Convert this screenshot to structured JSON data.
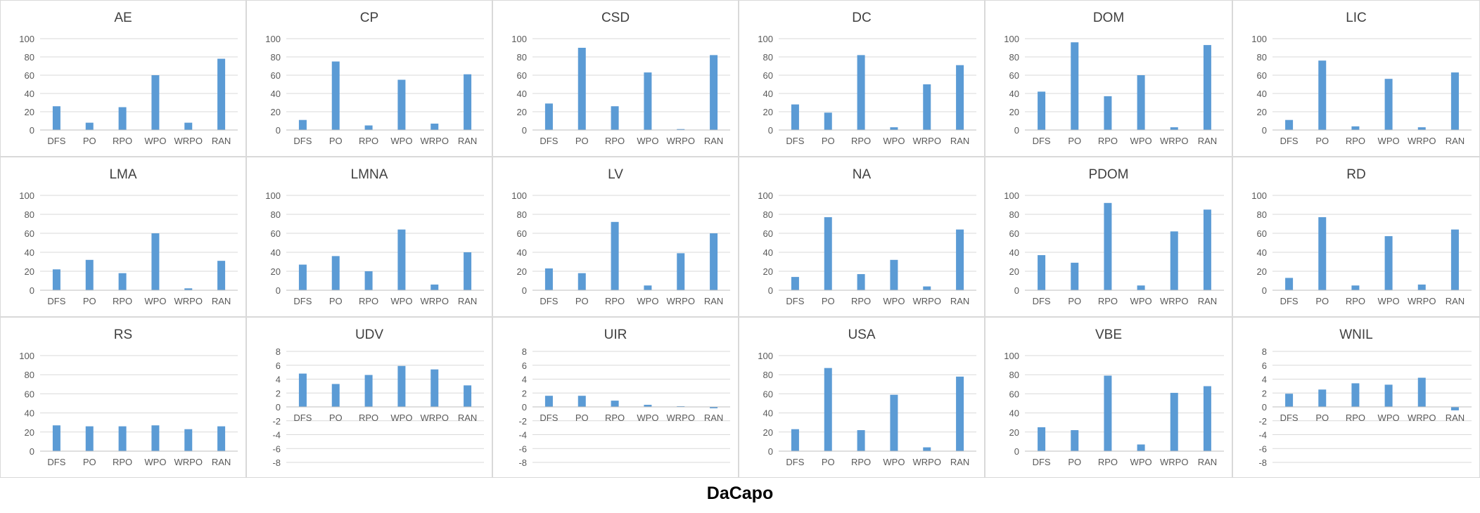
{
  "figure": {
    "caption": "DaCapo"
  },
  "colors": {
    "bar": "#5b9bd5",
    "grid": "#d9d9d9",
    "axis": "#bfbfbf",
    "tick_text": "#595959",
    "title_text": "#404040",
    "border": "#d9d9d9"
  },
  "chart_data": [
    {
      "type": "bar",
      "title": "AE",
      "categories": [
        "DFS",
        "PO",
        "RPO",
        "WPO",
        "WRPO",
        "RAN"
      ],
      "values": [
        26,
        8,
        25,
        60,
        8,
        78
      ],
      "ylim": [
        0,
        100
      ],
      "yticks": [
        0,
        20,
        40,
        60,
        80,
        100
      ],
      "grid": true,
      "legend": "none"
    },
    {
      "type": "bar",
      "title": "CP",
      "categories": [
        "DFS",
        "PO",
        "RPO",
        "WPO",
        "WRPO",
        "RAN"
      ],
      "values": [
        11,
        75,
        5,
        55,
        7,
        61
      ],
      "ylim": [
        0,
        100
      ],
      "yticks": [
        0,
        20,
        40,
        60,
        80,
        100
      ],
      "grid": true,
      "legend": "none"
    },
    {
      "type": "bar",
      "title": "CSD",
      "categories": [
        "DFS",
        "PO",
        "RPO",
        "WPO",
        "WRPO",
        "RAN"
      ],
      "values": [
        29,
        90,
        26,
        63,
        1,
        82
      ],
      "ylim": [
        0,
        100
      ],
      "yticks": [
        0,
        20,
        40,
        60,
        80,
        100
      ],
      "grid": true,
      "legend": "none"
    },
    {
      "type": "bar",
      "title": "DC",
      "categories": [
        "DFS",
        "PO",
        "RPO",
        "WPO",
        "WRPO",
        "RAN"
      ],
      "values": [
        28,
        19,
        82,
        3,
        50,
        71
      ],
      "ylim": [
        0,
        100
      ],
      "yticks": [
        0,
        20,
        40,
        60,
        80,
        100
      ],
      "grid": true,
      "legend": "none"
    },
    {
      "type": "bar",
      "title": "DOM",
      "categories": [
        "DFS",
        "PO",
        "RPO",
        "WPO",
        "WRPO",
        "RAN"
      ],
      "values": [
        42,
        96,
        37,
        60,
        3,
        93
      ],
      "ylim": [
        0,
        100
      ],
      "yticks": [
        0,
        20,
        40,
        60,
        80,
        100
      ],
      "grid": true,
      "legend": "none"
    },
    {
      "type": "bar",
      "title": "LIC",
      "categories": [
        "DFS",
        "PO",
        "RPO",
        "WPO",
        "WRPO",
        "RAN"
      ],
      "values": [
        11,
        76,
        4,
        56,
        3,
        63
      ],
      "ylim": [
        0,
        100
      ],
      "yticks": [
        0,
        20,
        40,
        60,
        80,
        100
      ],
      "grid": true,
      "legend": "none"
    },
    {
      "type": "bar",
      "title": "LMA",
      "categories": [
        "DFS",
        "PO",
        "RPO",
        "WPO",
        "WRPO",
        "RAN"
      ],
      "values": [
        22,
        32,
        18,
        60,
        2,
        31
      ],
      "ylim": [
        0,
        100
      ],
      "yticks": [
        0,
        20,
        40,
        60,
        80,
        100
      ],
      "grid": true,
      "legend": "none"
    },
    {
      "type": "bar",
      "title": "LMNA",
      "categories": [
        "DFS",
        "PO",
        "RPO",
        "WPO",
        "WRPO",
        "RAN"
      ],
      "values": [
        27,
        36,
        20,
        64,
        6,
        40
      ],
      "ylim": [
        0,
        100
      ],
      "yticks": [
        0,
        20,
        40,
        60,
        80,
        100
      ],
      "grid": true,
      "legend": "none"
    },
    {
      "type": "bar",
      "title": "LV",
      "categories": [
        "DFS",
        "PO",
        "RPO",
        "WPO",
        "WRPO",
        "RAN"
      ],
      "values": [
        23,
        18,
        72,
        5,
        39,
        60
      ],
      "ylim": [
        0,
        100
      ],
      "yticks": [
        0,
        20,
        40,
        60,
        80,
        100
      ],
      "grid": true,
      "legend": "none"
    },
    {
      "type": "bar",
      "title": "NA",
      "categories": [
        "DFS",
        "PO",
        "RPO",
        "WPO",
        "WRPO",
        "RAN"
      ],
      "values": [
        14,
        77,
        17,
        32,
        4,
        64
      ],
      "ylim": [
        0,
        100
      ],
      "yticks": [
        0,
        20,
        40,
        60,
        80,
        100
      ],
      "grid": true,
      "legend": "none"
    },
    {
      "type": "bar",
      "title": "PDOM",
      "categories": [
        "DFS",
        "PO",
        "RPO",
        "WPO",
        "WRPO",
        "RAN"
      ],
      "values": [
        37,
        29,
        92,
        5,
        62,
        85
      ],
      "ylim": [
        0,
        100
      ],
      "yticks": [
        0,
        20,
        40,
        60,
        80,
        100
      ],
      "grid": true,
      "legend": "none"
    },
    {
      "type": "bar",
      "title": "RD",
      "categories": [
        "DFS",
        "PO",
        "RPO",
        "WPO",
        "WRPO",
        "RAN"
      ],
      "values": [
        13,
        77,
        5,
        57,
        6,
        64
      ],
      "ylim": [
        0,
        100
      ],
      "yticks": [
        0,
        20,
        40,
        60,
        80,
        100
      ],
      "grid": true,
      "legend": "none"
    },
    {
      "type": "bar",
      "title": "RS",
      "categories": [
        "DFS",
        "PO",
        "RPO",
        "WPO",
        "WRPO",
        "RAN"
      ],
      "values": [
        27,
        26,
        26,
        27,
        23,
        26
      ],
      "ylim": [
        0,
        100
      ],
      "yticks": [
        0,
        20,
        40,
        60,
        80,
        100
      ],
      "grid": true,
      "legend": "none"
    },
    {
      "type": "bar",
      "title": "UDV",
      "categories": [
        "DFS",
        "PO",
        "RPO",
        "WPO",
        "WRPO",
        "RAN"
      ],
      "values": [
        4.8,
        3.3,
        4.6,
        5.9,
        5.4,
        3.1
      ],
      "ylim": [
        -8,
        8
      ],
      "yticks": [
        -8,
        -6,
        -4,
        -2,
        0,
        2,
        4,
        6,
        8
      ],
      "grid": true,
      "legend": "none"
    },
    {
      "type": "bar",
      "title": "UIR",
      "categories": [
        "DFS",
        "PO",
        "RPO",
        "WPO",
        "WRPO",
        "RAN"
      ],
      "values": [
        1.6,
        1.6,
        0.9,
        0.3,
        0.1,
        -0.2
      ],
      "ylim": [
        -8,
        8
      ],
      "yticks": [
        -8,
        -6,
        -4,
        -2,
        0,
        2,
        4,
        6,
        8
      ],
      "grid": true,
      "legend": "none"
    },
    {
      "type": "bar",
      "title": "USA",
      "categories": [
        "DFS",
        "PO",
        "RPO",
        "WPO",
        "WRPO",
        "RAN"
      ],
      "values": [
        23,
        87,
        22,
        59,
        4,
        78
      ],
      "ylim": [
        0,
        100
      ],
      "yticks": [
        0,
        20,
        40,
        60,
        80,
        100
      ],
      "grid": true,
      "legend": "none"
    },
    {
      "type": "bar",
      "title": "VBE",
      "categories": [
        "DFS",
        "PO",
        "RPO",
        "WPO",
        "WRPO",
        "RAN"
      ],
      "values": [
        25,
        22,
        79,
        7,
        61,
        68
      ],
      "ylim": [
        0,
        100
      ],
      "yticks": [
        0,
        20,
        40,
        60,
        80,
        100
      ],
      "grid": true,
      "legend": "none"
    },
    {
      "type": "bar",
      "title": "WNIL",
      "categories": [
        "DFS",
        "PO",
        "RPO",
        "WPO",
        "WRPO",
        "RAN"
      ],
      "values": [
        1.9,
        2.5,
        3.4,
        3.2,
        4.2,
        -0.5
      ],
      "ylim": [
        -8,
        8
      ],
      "yticks": [
        -8,
        -6,
        -4,
        -2,
        0,
        2,
        4,
        6,
        8
      ],
      "grid": true,
      "legend": "none"
    }
  ]
}
